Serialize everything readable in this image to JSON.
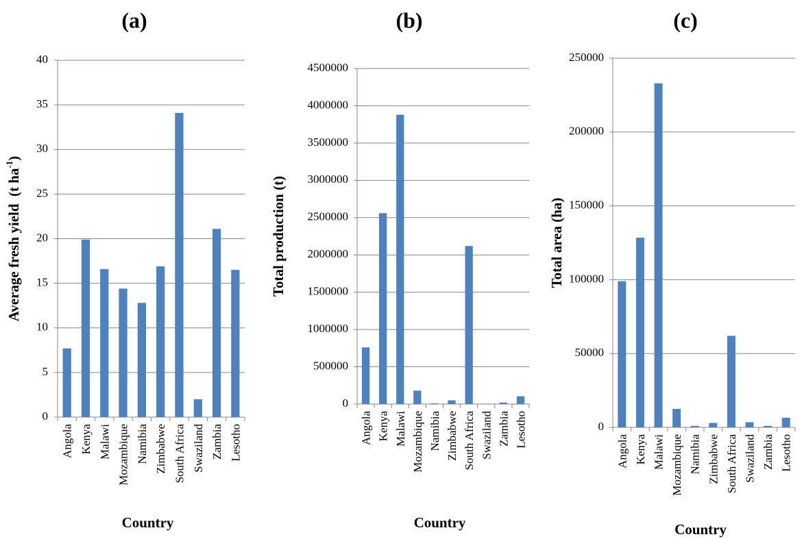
{
  "chart_data": [
    {
      "type": "bar",
      "panel_label": "(a)",
      "ylabel": "Average fresh yield",
      "ylabel_unit": "(t ha",
      "ylabel_unit_sup": "-1",
      "ylabel_unit_end": ")",
      "xlabel": "Country",
      "categories": [
        "Angola",
        "Kenya",
        "Malawi",
        "Mozambique",
        "Namibia",
        "Zimbabwe",
        "South Africa",
        "Swaziland",
        "Zambia",
        "Lesotho"
      ],
      "values": [
        7.7,
        19.9,
        16.6,
        14.4,
        12.8,
        16.9,
        34.1,
        2.0,
        21.1,
        16.5
      ],
      "ylim": [
        0,
        40
      ],
      "yticks": [
        0,
        5,
        10,
        15,
        20,
        25,
        30,
        35,
        40
      ],
      "grid": true,
      "bar_color": "#4F81BD"
    },
    {
      "type": "bar",
      "panel_label": "(b)",
      "ylabel": "Total production (t)",
      "xlabel": "Country",
      "categories": [
        "Angola",
        "Kenya",
        "Malawi",
        "Mozambique",
        "Namibia",
        "Zimbabwe",
        "South Africa",
        "Swaziland",
        "Zambia",
        "Lesotho"
      ],
      "values": [
        760000,
        2560000,
        3880000,
        180000,
        10000,
        50000,
        2120000,
        5000,
        20000,
        105000
      ],
      "ylim": [
        0,
        4500000
      ],
      "yticks": [
        0,
        500000,
        1000000,
        1500000,
        2000000,
        2500000,
        3000000,
        3500000,
        4000000,
        4500000
      ],
      "grid": true,
      "bar_color": "#4F81BD"
    },
    {
      "type": "bar",
      "panel_label": "(c)",
      "ylabel": "Total area (ha)",
      "xlabel": "Country",
      "categories": [
        "Angola",
        "Kenya",
        "Malawi",
        "Mozambique",
        "Namibia",
        "Zimbabwe",
        "South Africa",
        "Swaziland",
        "Zambia",
        "Lesotho"
      ],
      "values": [
        99000,
        128500,
        233000,
        12500,
        1000,
        3000,
        62000,
        3500,
        1000,
        6500
      ],
      "ylim": [
        0,
        250000
      ],
      "yticks": [
        0,
        50000,
        100000,
        150000,
        200000,
        250000
      ],
      "grid": true,
      "bar_color": "#4F81BD"
    }
  ]
}
